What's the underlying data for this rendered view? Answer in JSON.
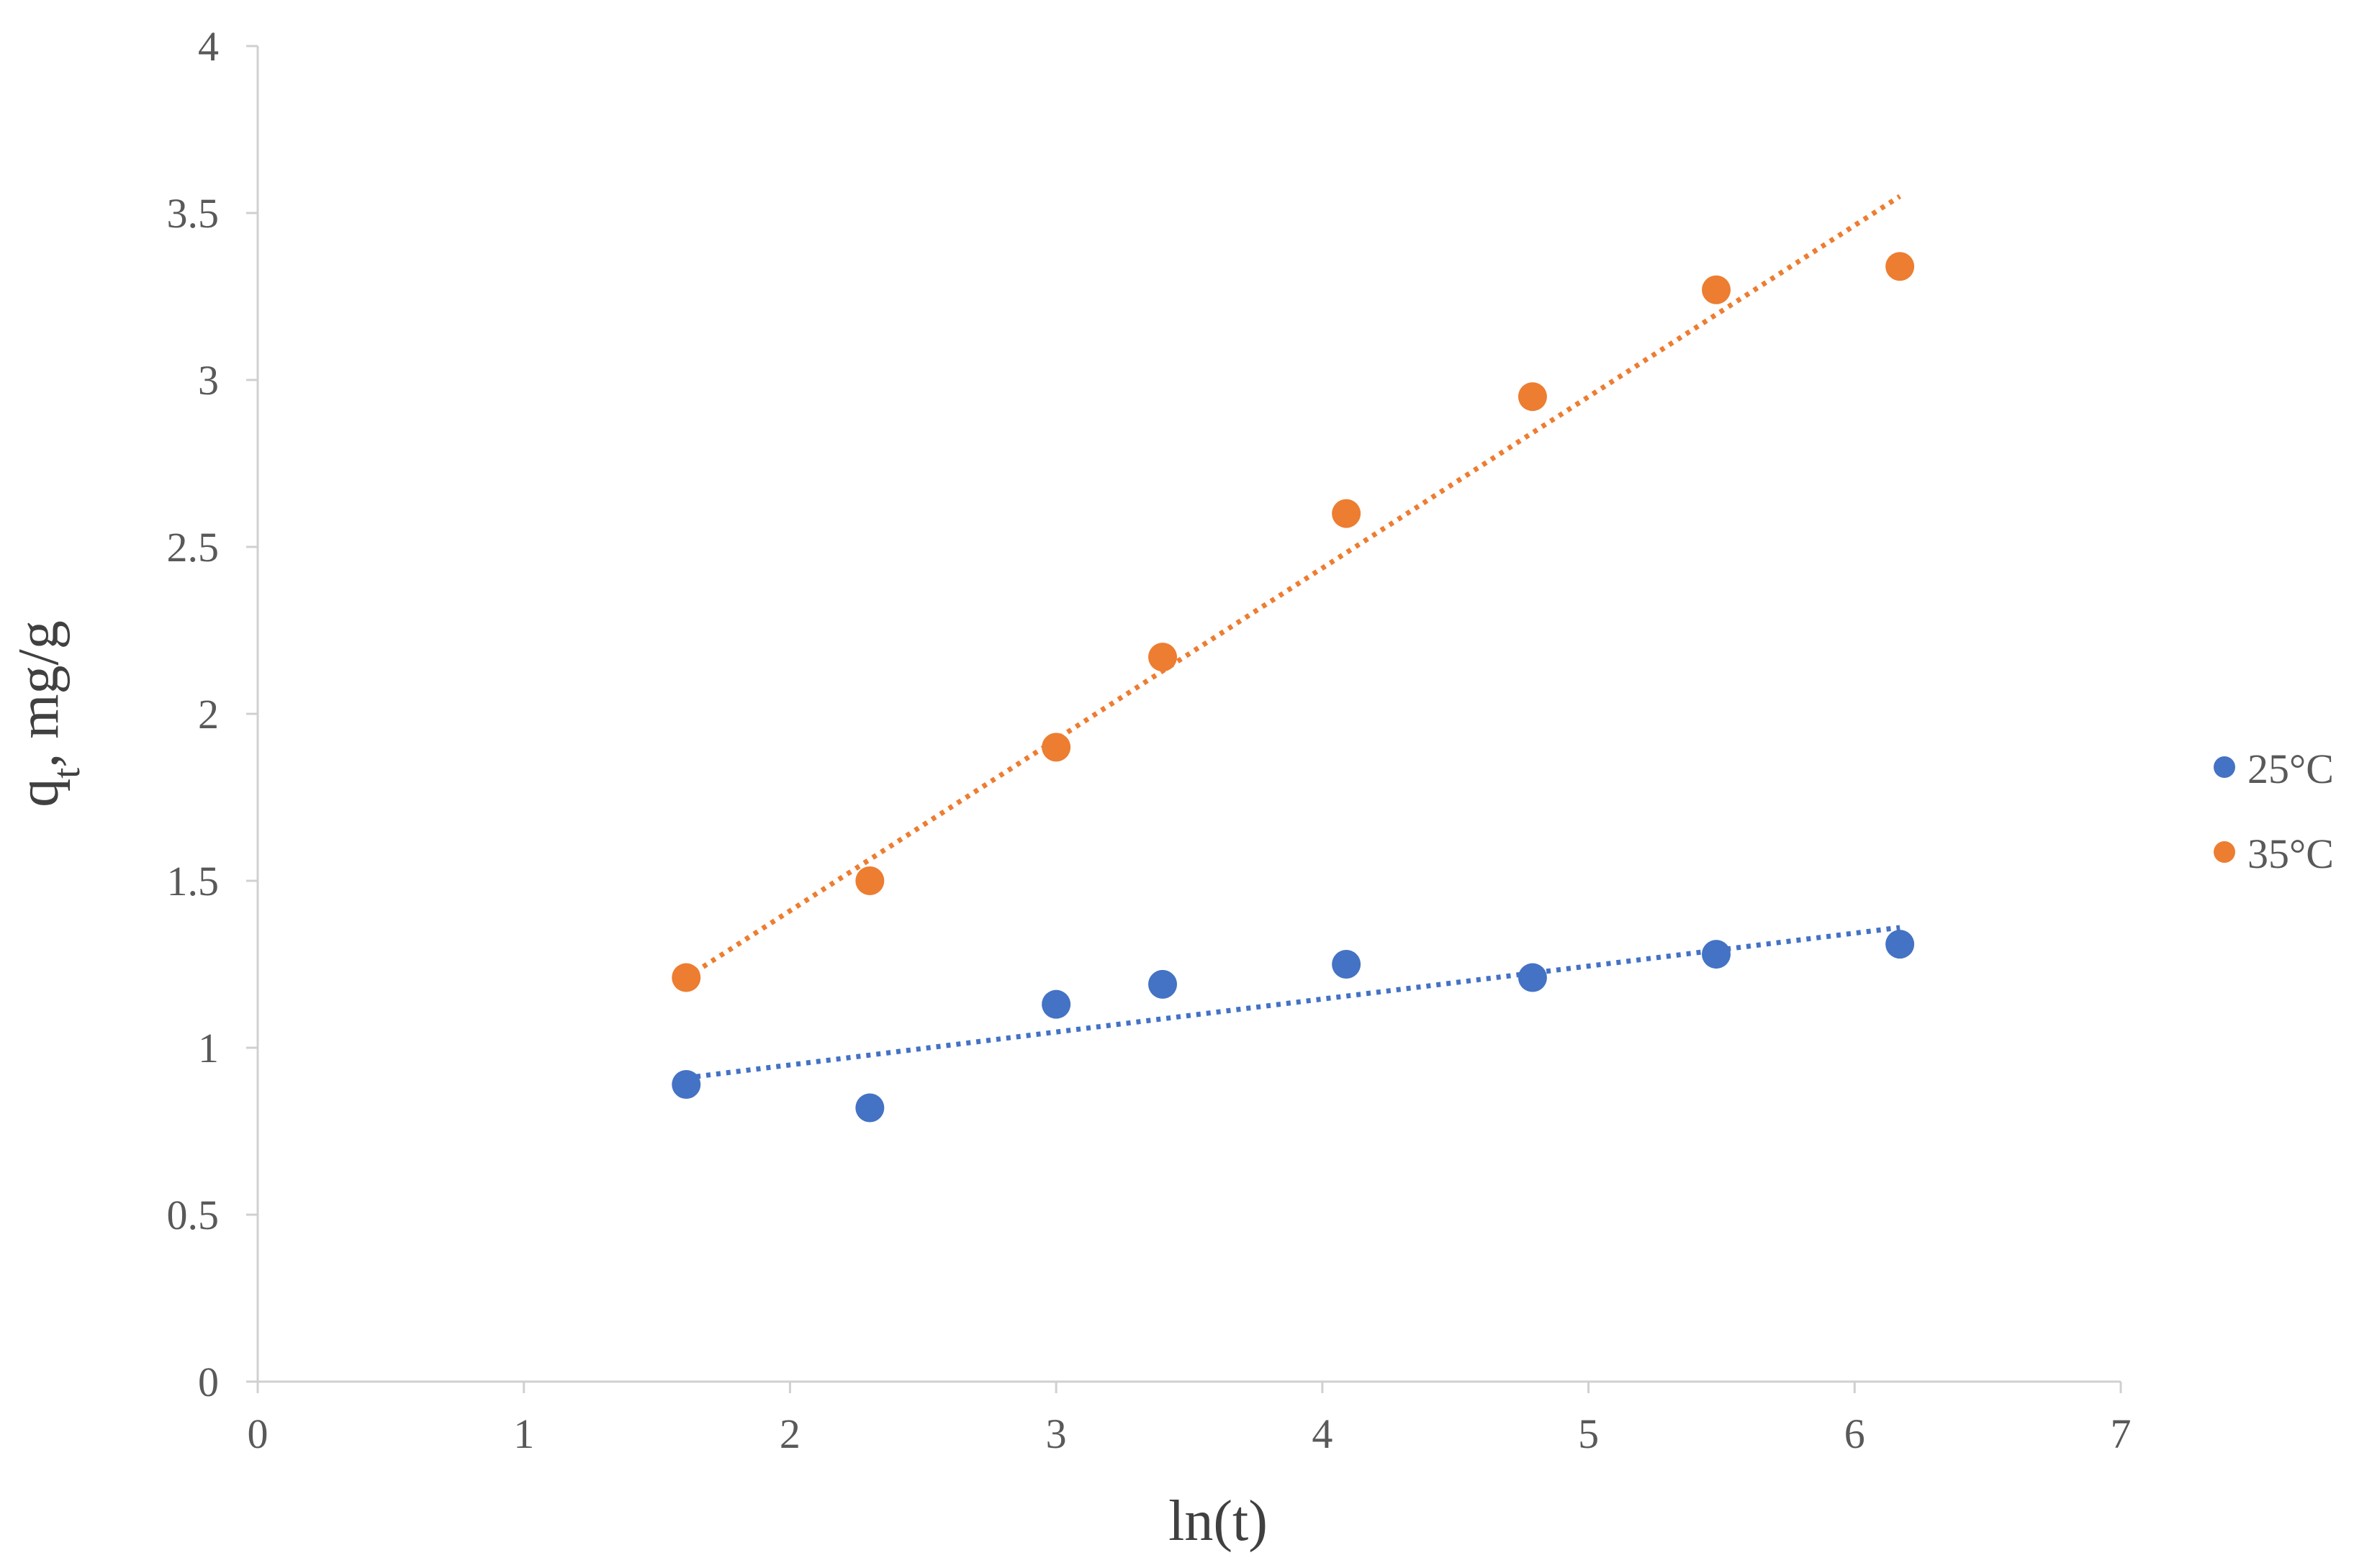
{
  "chart_data": {
    "type": "scatter",
    "xlabel": "ln(t)",
    "ylabel": "q",
    "ylabel_subscript": "t",
    "ylabel_suffix": ", mg/g",
    "xlim": [
      0,
      7
    ],
    "ylim": [
      0,
      4
    ],
    "x_ticks": [
      0,
      1,
      2,
      3,
      4,
      5,
      6,
      7
    ],
    "y_ticks": [
      0,
      0.5,
      1,
      1.5,
      2,
      2.5,
      3,
      3.5,
      4
    ],
    "x_tick_labels": [
      "0",
      "1",
      "2",
      "3",
      "4",
      "5",
      "6",
      "7"
    ],
    "y_tick_labels": [
      "0",
      "0.5",
      "1",
      "1.5",
      "2",
      "2.5",
      "3",
      "3.5",
      "4"
    ],
    "grid": false,
    "legend_position": "right",
    "series": [
      {
        "name": "25°C",
        "color": "#4472C4",
        "x": [
          1.61,
          2.3,
          3.0,
          3.4,
          4.09,
          4.79,
          5.48,
          6.17
        ],
        "y": [
          0.89,
          0.82,
          1.13,
          1.19,
          1.25,
          1.21,
          1.28,
          1.31
        ],
        "trendline": {
          "style": "dotted",
          "x": [
            1.61,
            6.17
          ],
          "y": [
            0.91,
            1.36
          ]
        }
      },
      {
        "name": "35°C",
        "color": "#ED7D31",
        "x": [
          1.61,
          2.3,
          3.0,
          3.4,
          4.09,
          4.79,
          5.48,
          6.17
        ],
        "y": [
          1.21,
          1.5,
          1.9,
          2.17,
          2.6,
          2.95,
          3.27,
          3.34
        ],
        "trendline": {
          "style": "dotted",
          "x": [
            1.61,
            6.17
          ],
          "y": [
            1.21,
            3.55
          ]
        }
      }
    ]
  }
}
